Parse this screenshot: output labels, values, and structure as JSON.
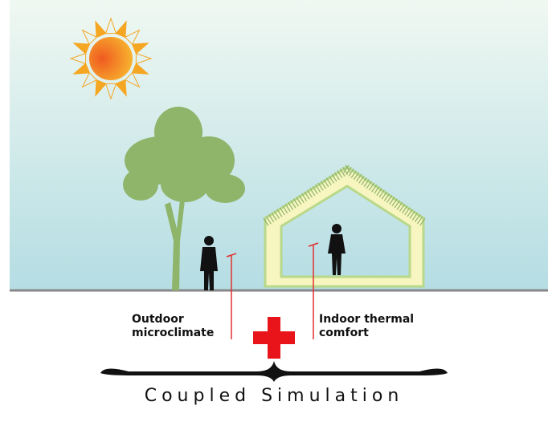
{
  "labels": {
    "outdoor": [
      "Outdoor",
      "microclimate"
    ],
    "indoor": [
      "Indoor thermal",
      "comfort"
    ]
  },
  "caption": "Coupled Simulation"
}
